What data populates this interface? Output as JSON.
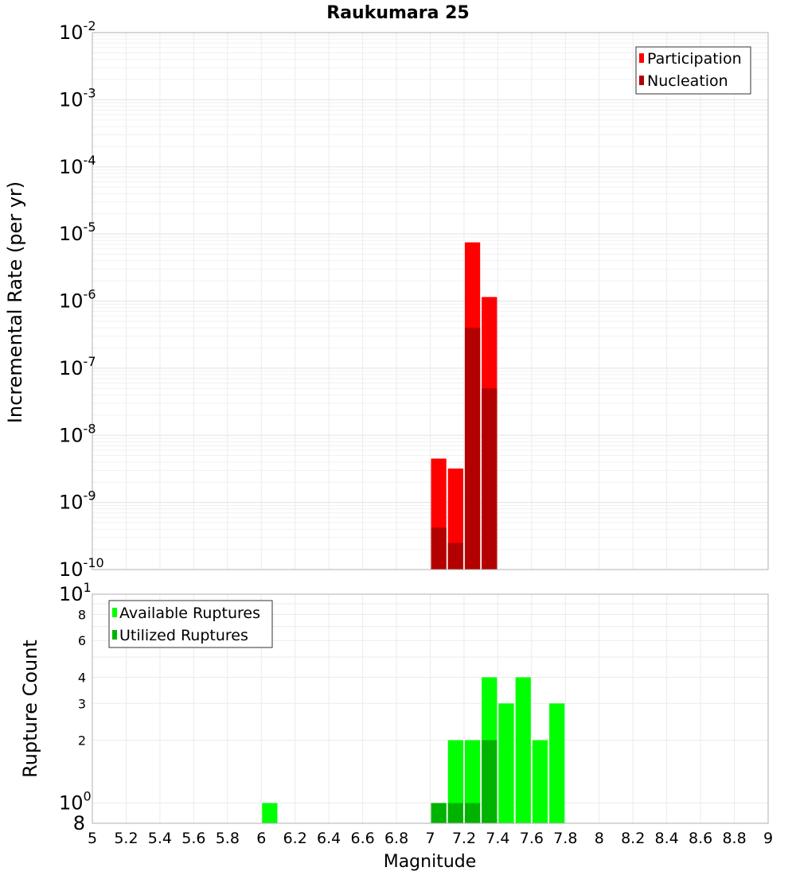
{
  "chart_data": [
    {
      "type": "bar",
      "title": "Raukumara 25",
      "ylabel": "Incremental Rate (per yr)",
      "y_scale": "log",
      "ylim": [
        1e-10,
        0.01
      ],
      "xlim": [
        5,
        9
      ],
      "bin_width": 0.1,
      "grid": true,
      "legend_position": "top-right",
      "y_tick_labels": [
        {
          "base": "10",
          "exp": "-10"
        },
        {
          "base": "10",
          "exp": "-9"
        },
        {
          "base": "10",
          "exp": "-8"
        },
        {
          "base": "10",
          "exp": "-7"
        },
        {
          "base": "10",
          "exp": "-6"
        },
        {
          "base": "10",
          "exp": "-5"
        },
        {
          "base": "10",
          "exp": "-4"
        },
        {
          "base": "10",
          "exp": "-3"
        },
        {
          "base": "10",
          "exp": "-2"
        }
      ],
      "series": [
        {
          "name": "Participation",
          "color": "#ff0000",
          "x": [
            7.05,
            7.15,
            7.25,
            7.35
          ],
          "values": [
            4.5e-09,
            3.2e-09,
            7.5e-06,
            1.15e-06
          ]
        },
        {
          "name": "Nucleation",
          "color": "#b30000",
          "x": [
            7.05,
            7.15,
            7.25,
            7.35
          ],
          "values": [
            4.2e-10,
            2.5e-10,
            4e-07,
            5e-08
          ]
        }
      ]
    },
    {
      "type": "bar",
      "xlabel": "Magnitude",
      "ylabel": "Rupture Count",
      "y_scale": "log",
      "ylim": [
        0.8,
        10
      ],
      "xlim": [
        5,
        9
      ],
      "bin_width": 0.1,
      "grid": true,
      "legend_position": "top-left",
      "x_tick_labels": [
        "5",
        "5.2",
        "5.4",
        "5.6",
        "5.8",
        "6",
        "6.2",
        "6.4",
        "6.6",
        "6.8",
        "7",
        "7.2",
        "7.4",
        "7.6",
        "7.8",
        "8",
        "8.2",
        "8.4",
        "8.6",
        "8.8",
        "9"
      ],
      "y_major_labels": [
        {
          "base": "10",
          "exp": "0"
        },
        {
          "base": "10",
          "exp": "1"
        }
      ],
      "y_minor_labels": [
        "8",
        "2",
        "3",
        "4",
        "6",
        "8"
      ],
      "series": [
        {
          "name": "Available Ruptures",
          "color": "#00ff00",
          "x": [
            6.05,
            7.05,
            7.15,
            7.25,
            7.35,
            7.45,
            7.55,
            7.65,
            7.75
          ],
          "values": [
            1,
            1,
            2,
            2,
            4,
            3,
            4,
            2,
            3
          ]
        },
        {
          "name": "Utilized Ruptures",
          "color": "#00b300",
          "x": [
            7.05,
            7.15,
            7.25,
            7.35
          ],
          "values": [
            1,
            1,
            1,
            2
          ]
        }
      ]
    }
  ]
}
